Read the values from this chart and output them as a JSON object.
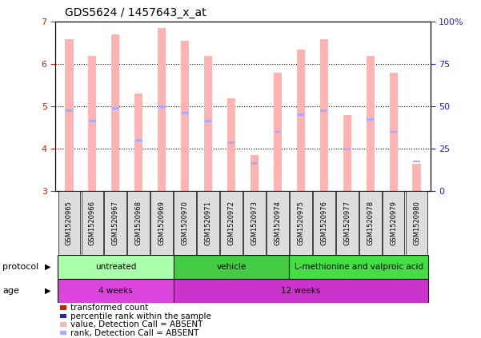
{
  "title": "GDS5624 / 1457643_x_at",
  "samples": [
    "GSM1520965",
    "GSM1520966",
    "GSM1520967",
    "GSM1520968",
    "GSM1520969",
    "GSM1520970",
    "GSM1520971",
    "GSM1520972",
    "GSM1520973",
    "GSM1520974",
    "GSM1520975",
    "GSM1520976",
    "GSM1520977",
    "GSM1520978",
    "GSM1520979",
    "GSM1520980"
  ],
  "bar_heights": [
    6.6,
    6.2,
    6.7,
    5.3,
    6.85,
    6.55,
    6.2,
    5.2,
    3.85,
    5.8,
    6.35,
    6.6,
    4.8,
    6.2,
    5.8,
    3.65
  ],
  "rank_values": [
    4.9,
    4.65,
    4.95,
    4.2,
    5.0,
    4.85,
    4.65,
    4.15,
    3.65,
    4.4,
    4.8,
    4.9,
    4.0,
    4.7,
    4.4,
    3.7
  ],
  "ylim_left": [
    3,
    7
  ],
  "yticks_left": [
    3,
    4,
    5,
    6,
    7
  ],
  "yticks_right_labels": [
    "0",
    "25",
    "50",
    "75",
    "100%"
  ],
  "bar_color_absent": "#ffb3b3",
  "rank_color_absent": "#aaaaff",
  "left_tick_color": "#cc2200",
  "right_tick_color": "#2222cc",
  "grid_color": "#000000",
  "protocol_groups": [
    {
      "label": "untreated",
      "start": 0,
      "end": 5,
      "color": "#aaffaa"
    },
    {
      "label": "vehicle",
      "start": 5,
      "end": 10,
      "color": "#44cc44"
    },
    {
      "label": "L-methionine and valproic acid",
      "start": 10,
      "end": 16,
      "color": "#44dd44"
    }
  ],
  "age_groups": [
    {
      "label": "4 weeks",
      "start": 0,
      "end": 5,
      "color": "#dd44dd"
    },
    {
      "label": "12 weeks",
      "start": 5,
      "end": 16,
      "color": "#cc33cc"
    }
  ],
  "legend_items": [
    {
      "label": "transformed count",
      "color": "#cc2200"
    },
    {
      "label": "percentile rank within the sample",
      "color": "#2222cc"
    },
    {
      "label": "value, Detection Call = ABSENT",
      "color": "#ffb3b3"
    },
    {
      "label": "rank, Detection Call = ABSENT",
      "color": "#aaaaff"
    }
  ],
  "bar_width": 0.35,
  "rank_bar_width": 0.3,
  "rank_bar_height": 0.055,
  "title_fontsize": 10,
  "tick_fontsize": 8,
  "sample_fontsize": 6,
  "label_fontsize": 8,
  "legend_fontsize": 7.5
}
